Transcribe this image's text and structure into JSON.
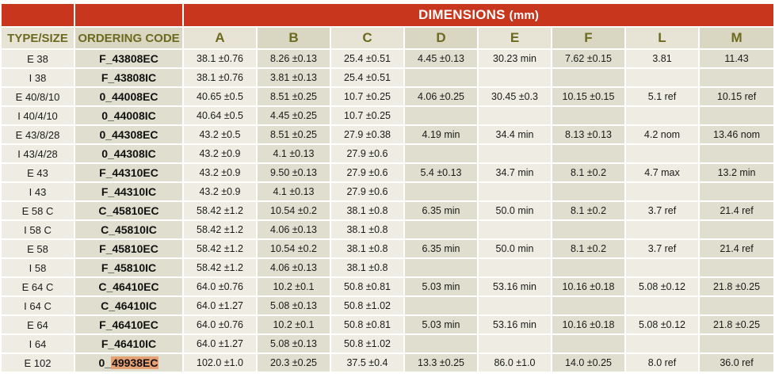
{
  "header": {
    "dimensions_title": "DIMENSIONS",
    "dimensions_unit": "(mm)"
  },
  "columns": {
    "type_size": "TYPE/SIZE",
    "ordering_code": "ORDERING CODE",
    "a": "A",
    "b": "B",
    "c": "C",
    "d": "D",
    "e": "E",
    "f": "F",
    "l": "L",
    "m": "M"
  },
  "rows": [
    {
      "type": "E 38",
      "code": "F_43808EC",
      "a": "38.1 ±0.76",
      "b": "8.26 ±0.13",
      "c": "25.4 ±0.51",
      "d": "4.45 ±0.13",
      "e": "30.23 min",
      "f": "7.62 ±0.15",
      "l": "3.81",
      "m": "11.43"
    },
    {
      "type": "I 38",
      "code": "F_43808IC",
      "a": "38.1 ±0.76",
      "b": "3.81 ±0.13",
      "c": "25.4 ±0.51",
      "d": "",
      "e": "",
      "f": "",
      "l": "",
      "m": ""
    },
    {
      "type": "E 40/8/10",
      "code": "0_44008EC",
      "a": "40.65 ±0.5",
      "b": "8.51 ±0.25",
      "c": "10.7 ±0.25",
      "d": "4.06 ±0.25",
      "e": "30.45 ±0.3",
      "f": "10.15 ±0.15",
      "l": "5.1 ref",
      "m": "10.15 ref"
    },
    {
      "type": "I 40/4/10",
      "code": "0_44008IC",
      "a": "40.64 ±0.5",
      "b": "4.45 ±0.25",
      "c": "10.7 ±0.25",
      "d": "",
      "e": "",
      "f": "",
      "l": "",
      "m": ""
    },
    {
      "type": "E 43/8/28",
      "code": "0_44308EC",
      "a": "43.2 ±0.5",
      "b": "8.51 ±0.25",
      "c": "27.9 ±0.38",
      "d": "4.19 min",
      "e": "34.4 min",
      "f": "8.13 ±0.13",
      "l": "4.2 nom",
      "m": "13.46 nom"
    },
    {
      "type": "I 43/4/28",
      "code": "0_44308IC",
      "a": "43.2 ±0.9",
      "b": "4.1 ±0.13",
      "c": "27.9 ±0.6",
      "d": "",
      "e": "",
      "f": "",
      "l": "",
      "m": ""
    },
    {
      "type": "E 43",
      "code": "F_44310EC",
      "a": "43.2 ±0.9",
      "b": "9.50 ±0.13",
      "c": "27.9 ±0.6",
      "d": "5.4 ±0.13",
      "e": "34.7 min",
      "f": "8.1 ±0.2",
      "l": "4.7 max",
      "m": "13.2 min"
    },
    {
      "type": "I 43",
      "code": "F_44310IC",
      "a": "43.2 ±0.9",
      "b": "4.1 ±0.13",
      "c": "27.9 ±0.6",
      "d": "",
      "e": "",
      "f": "",
      "l": "",
      "m": ""
    },
    {
      "type": "E 58 C",
      "code": "C_45810EC",
      "a": "58.42 ±1.2",
      "b": "10.54 ±0.2",
      "c": "38.1 ±0.8",
      "d": "6.35 min",
      "e": "50.0 min",
      "f": "8.1 ±0.2",
      "l": "3.7 ref",
      "m": "21.4 ref"
    },
    {
      "type": "I 58 C",
      "code": "C_45810IC",
      "a": "58.42 ±1.2",
      "b": "4.06 ±0.13",
      "c": "38.1 ±0.8",
      "d": "",
      "e": "",
      "f": "",
      "l": "",
      "m": ""
    },
    {
      "type": "E 58",
      "code": "F_45810EC",
      "a": "58.42 ±1.2",
      "b": "10.54 ±0.2",
      "c": "38.1 ±0.8",
      "d": "6.35 min",
      "e": "50.0 min",
      "f": "8.1 ±0.2",
      "l": "3.7 ref",
      "m": "21.4 ref"
    },
    {
      "type": "I 58",
      "code": "F_45810IC",
      "a": "58.42 ±1.2",
      "b": "4.06 ±0.13",
      "c": "38.1 ±0.8",
      "d": "",
      "e": "",
      "f": "",
      "l": "",
      "m": ""
    },
    {
      "type": "E 64 C",
      "code": "C_46410EC",
      "a": "64.0 ±0.76",
      "b": "10.2 ±0.1",
      "c": "50.8 ±0.81",
      "d": "5.03 min",
      "e": "53.16 min",
      "f": "10.16 ±0.18",
      "l": "5.08 ±0.12",
      "m": "21.8 ±0.25"
    },
    {
      "type": "I 64 C",
      "code": "C_46410IC",
      "a": "64.0 ±1.27",
      "b": "5.08 ±0.13",
      "c": "50.8 ±1.02",
      "d": "",
      "e": "",
      "f": "",
      "l": "",
      "m": ""
    },
    {
      "type": "E 64",
      "code": "F_46410EC",
      "a": "64.0 ±0.76",
      "b": "10.2 ±0.1",
      "c": "50.8 ±0.81",
      "d": "5.03 min",
      "e": "53.16 min",
      "f": "10.16 ±0.18",
      "l": "5.08 ±0.12",
      "m": "21.8 ±0.25"
    },
    {
      "type": "I 64",
      "code": "F_46410IC",
      "a": "64.0 ±1.27",
      "b": "5.08 ±0.13",
      "c": "50.8 ±1.02",
      "d": "",
      "e": "",
      "f": "",
      "l": "",
      "m": ""
    },
    {
      "type": "E 102",
      "code_prefix": "0_",
      "code_highlight": "49938EC",
      "a": "102.0 ±1.0",
      "b": "20.3 ±0.25",
      "c": "37.5 ±0.4",
      "d": "13.3 ±0.25",
      "e": "86.0 ±1.0",
      "f": "14.0 ±0.25",
      "l": "8.0 ref",
      "m": "36.0 ref"
    }
  ],
  "colors": {
    "header_red": "#c7361d",
    "header_text_olive": "#6b6a1f",
    "cell_light": "#efede3",
    "cell_dark": "#e0dece",
    "highlight": "#e5a074"
  }
}
